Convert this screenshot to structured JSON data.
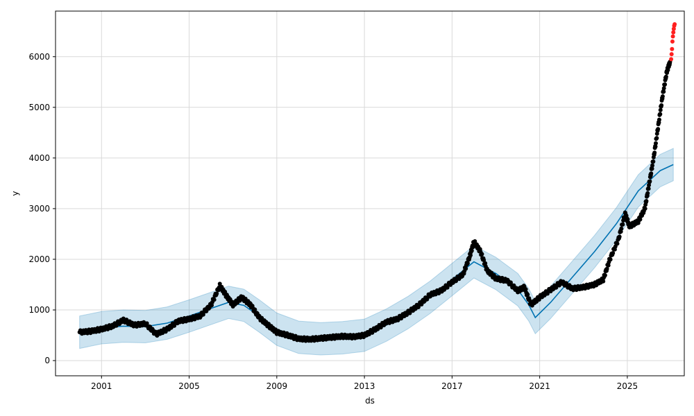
{
  "chart_data": {
    "type": "line",
    "xlabel": "ds",
    "ylabel": "y",
    "xlim": [
      1998.9,
      2027.6
    ],
    "ylim": [
      -300,
      6900
    ],
    "grid": true,
    "x_ticks": [
      {
        "label": "2001",
        "value": 2001
      },
      {
        "label": "2005",
        "value": 2005
      },
      {
        "label": "2009",
        "value": 2009
      },
      {
        "label": "2013",
        "value": 2013
      },
      {
        "label": "2017",
        "value": 2017
      },
      {
        "label": "2021",
        "value": 2021
      },
      {
        "label": "2025",
        "value": 2025
      }
    ],
    "y_ticks": [
      {
        "label": "0",
        "value": 0
      },
      {
        "label": "1000",
        "value": 1000
      },
      {
        "label": "2000",
        "value": 2000
      },
      {
        "label": "3000",
        "value": 3000
      },
      {
        "label": "4000",
        "value": 4000
      },
      {
        "label": "5000",
        "value": 5000
      },
      {
        "label": "6000",
        "value": 6000
      }
    ],
    "series": [
      {
        "kind": "forecast",
        "color": "#0072B2",
        "points": [
          [
            2000.0,
            560
          ],
          [
            2001.0,
            650
          ],
          [
            2002.0,
            680
          ],
          [
            2003.0,
            670
          ],
          [
            2004.0,
            740
          ],
          [
            2005.0,
            880
          ],
          [
            2006.0,
            1030
          ],
          [
            2006.8,
            1150
          ],
          [
            2007.5,
            1090
          ],
          [
            2008.2,
            880
          ],
          [
            2009.0,
            620
          ],
          [
            2010.0,
            460
          ],
          [
            2011.0,
            430
          ],
          [
            2012.0,
            450
          ],
          [
            2013.0,
            500
          ],
          [
            2014.0,
            700
          ],
          [
            2015.0,
            950
          ],
          [
            2016.0,
            1250
          ],
          [
            2017.0,
            1600
          ],
          [
            2018.0,
            1950
          ],
          [
            2019.0,
            1720
          ],
          [
            2020.0,
            1400
          ],
          [
            2020.5,
            1100
          ],
          [
            2020.8,
            850
          ],
          [
            2021.5,
            1150
          ],
          [
            2022.5,
            1650
          ],
          [
            2023.5,
            2150
          ],
          [
            2024.5,
            2700
          ],
          [
            2025.5,
            3350
          ],
          [
            2026.5,
            3750
          ],
          [
            2027.1,
            3870
          ]
        ],
        "interval_half_width": 320
      },
      {
        "kind": "observed",
        "color": "#000000",
        "points": [
          [
            2000.0,
            560
          ],
          [
            2000.5,
            580
          ],
          [
            2001.0,
            620
          ],
          [
            2001.5,
            680
          ],
          [
            2002.0,
            800
          ],
          [
            2002.5,
            700
          ],
          [
            2003.0,
            730
          ],
          [
            2003.5,
            520
          ],
          [
            2004.0,
            620
          ],
          [
            2004.5,
            780
          ],
          [
            2005.0,
            820
          ],
          [
            2005.5,
            880
          ],
          [
            2006.0,
            1100
          ],
          [
            2006.4,
            1480
          ],
          [
            2006.7,
            1280
          ],
          [
            2007.0,
            1100
          ],
          [
            2007.4,
            1250
          ],
          [
            2007.8,
            1100
          ],
          [
            2008.2,
            850
          ],
          [
            2008.6,
            700
          ],
          [
            2009.0,
            560
          ],
          [
            2009.5,
            500
          ],
          [
            2010.0,
            430
          ],
          [
            2010.5,
            420
          ],
          [
            2011.0,
            440
          ],
          [
            2011.5,
            460
          ],
          [
            2012.0,
            480
          ],
          [
            2012.5,
            470
          ],
          [
            2013.0,
            500
          ],
          [
            2013.5,
            620
          ],
          [
            2014.0,
            760
          ],
          [
            2014.5,
            820
          ],
          [
            2015.0,
            950
          ],
          [
            2015.5,
            1100
          ],
          [
            2016.0,
            1300
          ],
          [
            2016.5,
            1380
          ],
          [
            2017.0,
            1550
          ],
          [
            2017.5,
            1700
          ],
          [
            2017.8,
            2050
          ],
          [
            2018.0,
            2350
          ],
          [
            2018.3,
            2150
          ],
          [
            2018.6,
            1780
          ],
          [
            2019.0,
            1620
          ],
          [
            2019.5,
            1580
          ],
          [
            2020.0,
            1380
          ],
          [
            2020.3,
            1450
          ],
          [
            2020.6,
            1100
          ],
          [
            2021.0,
            1250
          ],
          [
            2021.5,
            1400
          ],
          [
            2022.0,
            1550
          ],
          [
            2022.5,
            1420
          ],
          [
            2023.0,
            1450
          ],
          [
            2023.5,
            1500
          ],
          [
            2023.9,
            1600
          ],
          [
            2024.2,
            2000
          ],
          [
            2024.6,
            2400
          ],
          [
            2024.9,
            2900
          ],
          [
            2025.1,
            2650
          ],
          [
            2025.5,
            2750
          ],
          [
            2025.8,
            3000
          ],
          [
            2026.0,
            3500
          ],
          [
            2026.2,
            4000
          ],
          [
            2026.4,
            4600
          ],
          [
            2026.6,
            5200
          ],
          [
            2026.8,
            5700
          ],
          [
            2026.95,
            5900
          ]
        ]
      },
      {
        "kind": "outliers",
        "color": "#FF2020",
        "points": [
          [
            2027.0,
            5950
          ],
          [
            2027.02,
            6050
          ],
          [
            2027.04,
            6150
          ],
          [
            2027.06,
            6300
          ],
          [
            2027.08,
            6400
          ],
          [
            2027.1,
            6480
          ],
          [
            2027.12,
            6550
          ],
          [
            2027.14,
            6610
          ],
          [
            2027.16,
            6640
          ]
        ]
      }
    ]
  }
}
